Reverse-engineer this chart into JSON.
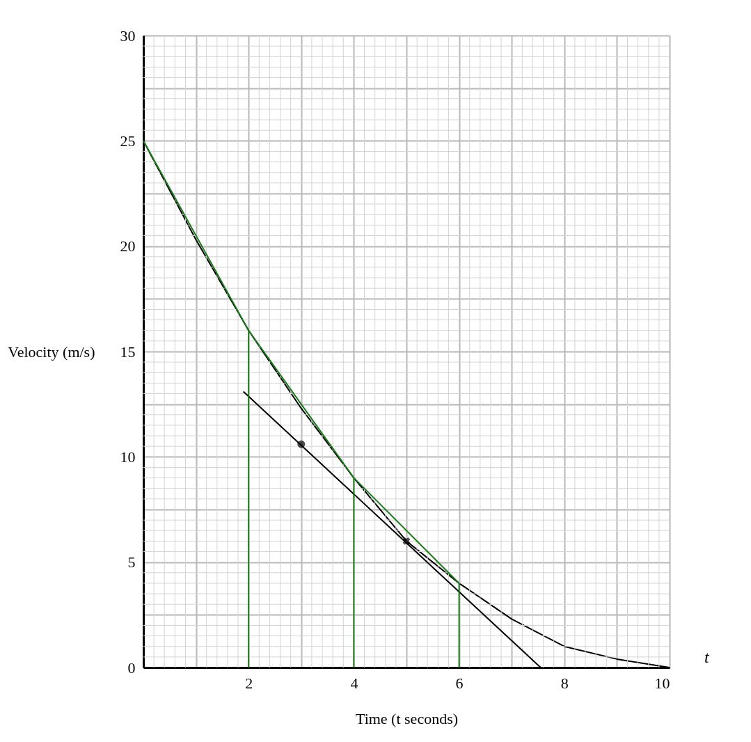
{
  "chart_data": {
    "type": "line",
    "xlabel": "Time (t seconds)",
    "ylabel": "Velocity (m/s)",
    "annotations": [
      "t"
    ],
    "xlim": [
      0,
      10
    ],
    "ylim": [
      0,
      30
    ],
    "xticks": [
      {
        "value": 0,
        "label": null
      },
      {
        "value": 1,
        "label": null
      },
      2,
      {
        "value": 3,
        "label": null
      },
      4,
      {
        "value": 5,
        "label": null
      },
      6,
      {
        "value": 7,
        "label": null
      },
      8,
      {
        "value": 9,
        "label": null
      },
      10
    ],
    "yticks": [
      0,
      {
        "value": 2.5,
        "label": null
      },
      5,
      {
        "value": 7.5,
        "label": null
      },
      10,
      {
        "value": 12.5,
        "label": null
      },
      15,
      {
        "value": 17.5,
        "label": null
      },
      20,
      {
        "value": 22.5,
        "label": null
      },
      25,
      {
        "value": 27.5,
        "label": null
      },
      30
    ],
    "grid": true,
    "line_style": "solid",
    "series": [
      {
        "color": "#000000",
        "x": [
          0,
          1,
          2,
          3,
          4,
          5,
          6,
          7,
          8,
          9,
          10
        ],
        "values": [
          25,
          20.3,
          16,
          12.3,
          9,
          6,
          4,
          2.3,
          1,
          0.4,
          0
        ]
      },
      {
        "color": "#000000",
        "x": [
          1.9,
          7.55
        ],
        "values": [
          13.1,
          0
        ]
      },
      {
        "color": "#1a7a1a",
        "x": [
          0,
          2,
          4,
          6
        ],
        "values": [
          25,
          16,
          9,
          4
        ]
      },
      {
        "color": "#1a7a1a",
        "x": [
          2,
          2
        ],
        "values": [
          0,
          16
        ]
      },
      {
        "color": "#1a7a1a",
        "x": [
          4,
          4
        ],
        "values": [
          0,
          9
        ]
      },
      {
        "color": "#1a7a1a",
        "x": [
          6,
          6
        ],
        "values": [
          0,
          4
        ]
      },
      {
        "type": "scatter",
        "color": "#000000",
        "x": [
          3
        ],
        "values": [
          10.6
        ],
        "marker": "circle"
      },
      {
        "type": "scatter",
        "color": "#000000",
        "x": [
          5
        ],
        "values": [
          6
        ],
        "marker": "cross"
      }
    ]
  }
}
